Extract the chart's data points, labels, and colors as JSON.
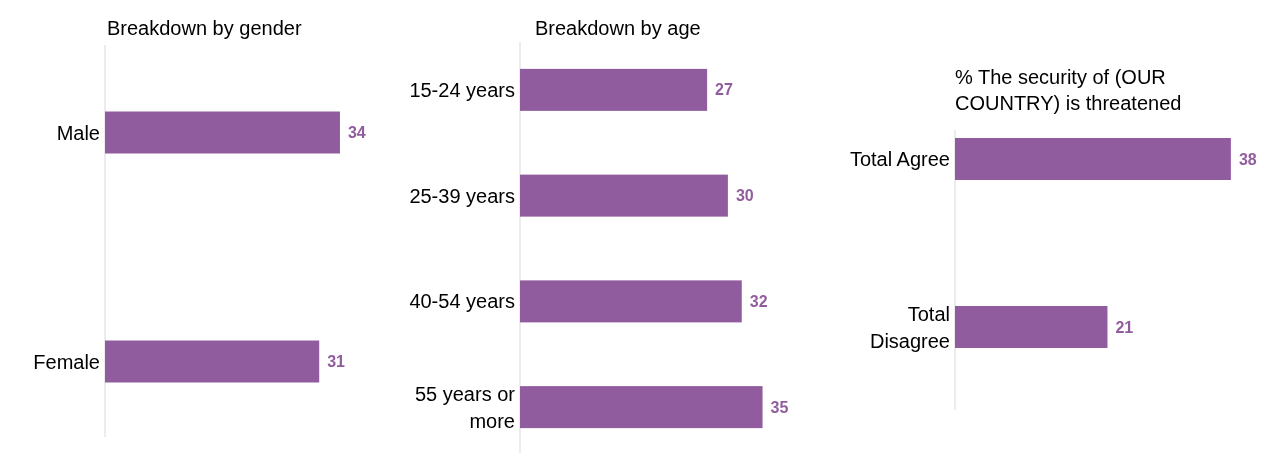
{
  "chart_data": [
    {
      "type": "bar",
      "orientation": "horizontal",
      "title": "Breakdown by gender",
      "categories": [
        "Male",
        "Female"
      ],
      "values": [
        34,
        31
      ],
      "color": "#915c9e",
      "data_labels": true
    },
    {
      "type": "bar",
      "orientation": "horizontal",
      "title": "Breakdown by age",
      "categories": [
        "15-24 years",
        "25-39 years",
        "40-54 years",
        "55 years or more"
      ],
      "values": [
        27,
        30,
        32,
        35
      ],
      "color": "#915c9e",
      "data_labels": true
    },
    {
      "type": "bar",
      "orientation": "horizontal",
      "title": "% The security of (OUR COUNTRY) is threatened",
      "categories": [
        "Total Agree",
        "Total Disagree"
      ],
      "values": [
        38,
        21
      ],
      "color": "#915c9e",
      "data_labels": true
    }
  ]
}
